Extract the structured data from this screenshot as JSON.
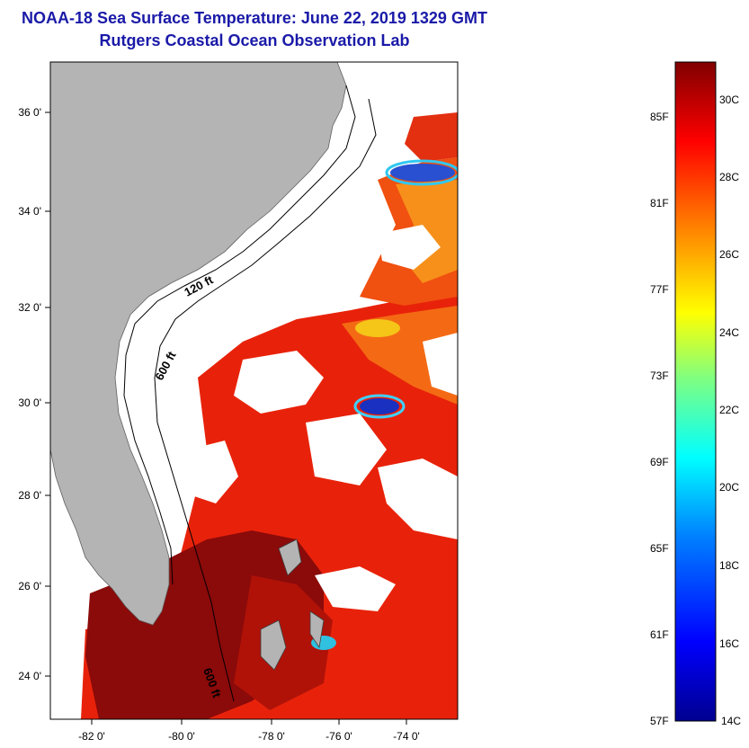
{
  "header": {
    "title_line1": "NOAA-18 Sea Surface Temperature:  June 22, 2019 1329 GMT",
    "title_line2": "Rutgers Coastal Ocean Observation Lab"
  },
  "map": {
    "region": "US Southeast coast / Bahamas",
    "lat_ticks": [
      "36 0'",
      "34 0'",
      "32 0'",
      "30 0'",
      "28 0'",
      "26 0'",
      "24 0'"
    ],
    "lon_ticks": [
      "-82 0'",
      "-80 0'",
      "-78 0'",
      "-76 0'",
      "-74 0'"
    ],
    "contours": [
      "120 ft",
      "600 ft",
      "600 ft"
    ],
    "colors": {
      "land": "#b4b4b4",
      "cloud": "#ffffff",
      "warm_sst": "#e8220a",
      "hot_sst": "#8b0a0a",
      "cool_sst": "#2040d0"
    }
  },
  "colorbar": {
    "fahrenheit_labels": [
      "85F",
      "81F",
      "77F",
      "73F",
      "69F",
      "65F",
      "61F",
      "57F"
    ],
    "celsius_labels": [
      "30C",
      "28C",
      "26C",
      "24C",
      "22C",
      "20C",
      "18C",
      "16C",
      "14C"
    ],
    "range_c": [
      14,
      31
    ],
    "palette": [
      "#00008f",
      "#0000ff",
      "#0080ff",
      "#00ffff",
      "#80ff80",
      "#ffff00",
      "#ff8000",
      "#ff0000",
      "#800000"
    ]
  }
}
